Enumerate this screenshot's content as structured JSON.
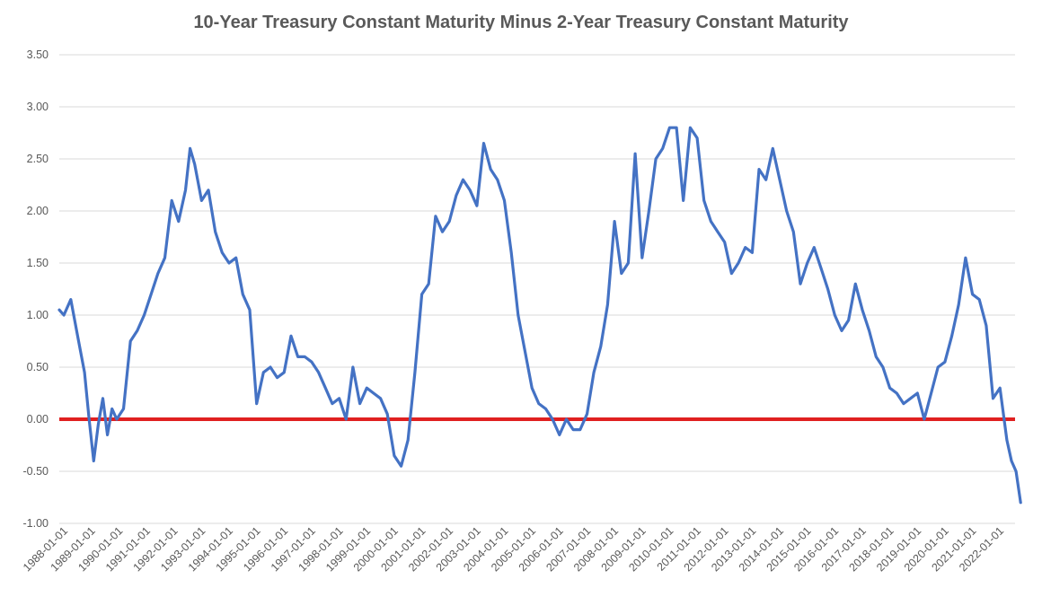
{
  "chart_data": {
    "type": "line",
    "title": "10-Year Treasury Constant Maturity Minus 2-Year Treasury Constant Maturity",
    "xlabel": "",
    "ylabel": "",
    "ylim": [
      -1.0,
      3.5
    ],
    "y_ticks": [
      "3.50",
      "3.00",
      "2.50",
      "2.00",
      "1.50",
      "1.00",
      "0.50",
      "0.00",
      "-0.50",
      "-1.00"
    ],
    "y_tick_values": [
      3.5,
      3.0,
      2.5,
      2.0,
      1.5,
      1.0,
      0.5,
      0.0,
      -0.5,
      -1.0
    ],
    "x_ticks": [
      "1988-01-01",
      "1989-01-01",
      "1990-01-01",
      "1991-01-01",
      "1992-01-01",
      "1993-01-01",
      "1994-01-01",
      "1995-01-01",
      "1996-01-01",
      "1997-01-01",
      "1998-01-01",
      "1999-01-01",
      "2000-01-01",
      "2001-01-01",
      "2002-01-01",
      "2003-01-01",
      "2004-01-01",
      "2005-01-01",
      "2006-01-01",
      "2007-01-01",
      "2008-01-01",
      "2009-01-01",
      "2010-01-01",
      "2011-01-01",
      "2012-01-01",
      "2013-01-01",
      "2014-01-01",
      "2015-01-01",
      "2016-01-01",
      "2017-01-01",
      "2018-01-01",
      "2019-01-01",
      "2020-01-01",
      "2021-01-01",
      "2022-01-01"
    ],
    "x_range": [
      "1988-01-01",
      "2022-12-31"
    ],
    "grid": true,
    "reference_line": {
      "y": 0.0,
      "color": "#e02020"
    },
    "series": [
      {
        "color": "#4472c4",
        "x": [
          "1988-01",
          "1988-03",
          "1988-06",
          "1988-09",
          "1988-12",
          "1989-02",
          "1989-04",
          "1989-06",
          "1989-08",
          "1989-10",
          "1989-12",
          "1990-02",
          "1990-05",
          "1990-08",
          "1990-11",
          "1991-02",
          "1991-05",
          "1991-08",
          "1991-11",
          "1992-02",
          "1992-05",
          "1992-08",
          "1992-10",
          "1992-12",
          "1993-03",
          "1993-06",
          "1993-09",
          "1993-12",
          "1994-03",
          "1994-06",
          "1994-09",
          "1994-12",
          "1995-03",
          "1995-06",
          "1995-09",
          "1995-12",
          "1996-03",
          "1996-06",
          "1996-09",
          "1996-12",
          "1997-03",
          "1997-06",
          "1997-09",
          "1997-12",
          "1998-03",
          "1998-06",
          "1998-09",
          "1998-12",
          "1999-03",
          "1999-06",
          "1999-09",
          "1999-12",
          "2000-03",
          "2000-06",
          "2000-09",
          "2000-12",
          "2001-03",
          "2001-06",
          "2001-09",
          "2001-12",
          "2002-03",
          "2002-06",
          "2002-09",
          "2002-12",
          "2003-03",
          "2003-06",
          "2003-09",
          "2003-12",
          "2004-03",
          "2004-06",
          "2004-09",
          "2004-12",
          "2005-03",
          "2005-06",
          "2005-09",
          "2005-12",
          "2006-03",
          "2006-06",
          "2006-09",
          "2006-12",
          "2007-03",
          "2007-06",
          "2007-09",
          "2007-12",
          "2008-03",
          "2008-06",
          "2008-09",
          "2008-12",
          "2009-03",
          "2009-06",
          "2009-09",
          "2009-12",
          "2010-03",
          "2010-06",
          "2010-09",
          "2010-12",
          "2011-03",
          "2011-06",
          "2011-09",
          "2011-12",
          "2012-03",
          "2012-06",
          "2012-09",
          "2012-12",
          "2013-03",
          "2013-06",
          "2013-09",
          "2013-12",
          "2014-03",
          "2014-06",
          "2014-09",
          "2014-12",
          "2015-03",
          "2015-06",
          "2015-09",
          "2015-12",
          "2016-03",
          "2016-06",
          "2016-09",
          "2016-12",
          "2017-03",
          "2017-06",
          "2017-09",
          "2017-12",
          "2018-03",
          "2018-06",
          "2018-09",
          "2018-12",
          "2019-03",
          "2019-06",
          "2019-09",
          "2019-12",
          "2020-03",
          "2020-06",
          "2020-09",
          "2020-12",
          "2021-03",
          "2021-06",
          "2021-09",
          "2021-12",
          "2022-03",
          "2022-06",
          "2022-08",
          "2022-10",
          "2022-12"
        ],
        "values": [
          1.05,
          1.0,
          1.15,
          0.8,
          0.45,
          0.0,
          -0.4,
          -0.05,
          0.2,
          -0.15,
          0.1,
          0.0,
          0.1,
          0.75,
          0.85,
          1.0,
          1.2,
          1.4,
          1.55,
          2.1,
          1.9,
          2.2,
          2.6,
          2.45,
          2.1,
          2.2,
          1.8,
          1.6,
          1.5,
          1.55,
          1.2,
          1.05,
          0.15,
          0.45,
          0.5,
          0.4,
          0.45,
          0.8,
          0.6,
          0.6,
          0.55,
          0.45,
          0.3,
          0.15,
          0.2,
          0.0,
          0.5,
          0.15,
          0.3,
          0.25,
          0.2,
          0.05,
          -0.35,
          -0.45,
          -0.2,
          0.45,
          1.2,
          1.3,
          1.95,
          1.8,
          1.9,
          2.15,
          2.3,
          2.2,
          2.05,
          2.65,
          2.4,
          2.3,
          2.1,
          1.6,
          1.0,
          0.65,
          0.3,
          0.15,
          0.1,
          0.0,
          -0.15,
          0.0,
          -0.1,
          -0.1,
          0.05,
          0.45,
          0.7,
          1.1,
          1.9,
          1.4,
          1.5,
          2.55,
          1.55,
          2.0,
          2.5,
          2.6,
          2.8,
          2.8,
          2.1,
          2.8,
          2.7,
          2.1,
          1.9,
          1.8,
          1.7,
          1.4,
          1.5,
          1.65,
          1.6,
          2.4,
          2.3,
          2.6,
          2.3,
          2.0,
          1.8,
          1.3,
          1.5,
          1.65,
          1.45,
          1.25,
          1.0,
          0.85,
          0.95,
          1.3,
          1.05,
          0.85,
          0.6,
          0.5,
          0.3,
          0.25,
          0.15,
          0.2,
          0.25,
          0.0,
          0.25,
          0.5,
          0.55,
          0.8,
          1.1,
          1.55,
          1.2,
          1.15,
          0.9,
          0.2,
          0.3,
          -0.2,
          -0.4,
          -0.5,
          -0.8
        ]
      }
    ]
  }
}
